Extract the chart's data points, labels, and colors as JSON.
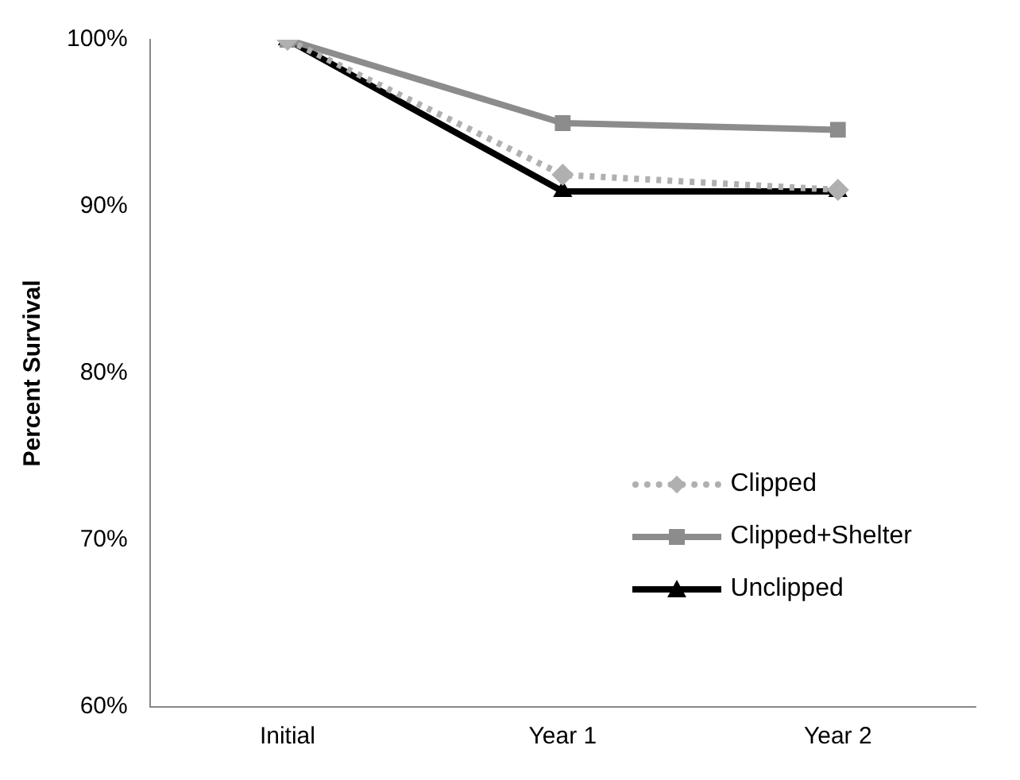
{
  "chart_data": {
    "type": "line",
    "ylabel": "Percent Survival",
    "categories": [
      "Initial",
      "Year 1",
      "Year 2"
    ],
    "series": [
      {
        "name": "Clipped",
        "color": "#b0b0b0",
        "values": [
          100,
          91.9,
          91
        ],
        "marker": "diamond",
        "line_style": "dotted"
      },
      {
        "name": "Clipped+Shelter",
        "color": "#8c8c8c",
        "values": [
          100,
          95,
          94.6
        ],
        "marker": "square",
        "line_style": "solid"
      },
      {
        "name": "Unclipped",
        "color": "#000000",
        "values": [
          100,
          90.9,
          90.9
        ],
        "marker": "triangle",
        "line_style": "solid"
      }
    ],
    "ylim": [
      60,
      100
    ],
    "yticks": [
      {
        "value": 60,
        "label": "60%"
      },
      {
        "value": 70,
        "label": "70%"
      },
      {
        "value": 80,
        "label": "80%"
      },
      {
        "value": 90,
        "label": "90%"
      },
      {
        "value": 100,
        "label": "100%"
      }
    ],
    "grid": false,
    "legend": "right"
  }
}
